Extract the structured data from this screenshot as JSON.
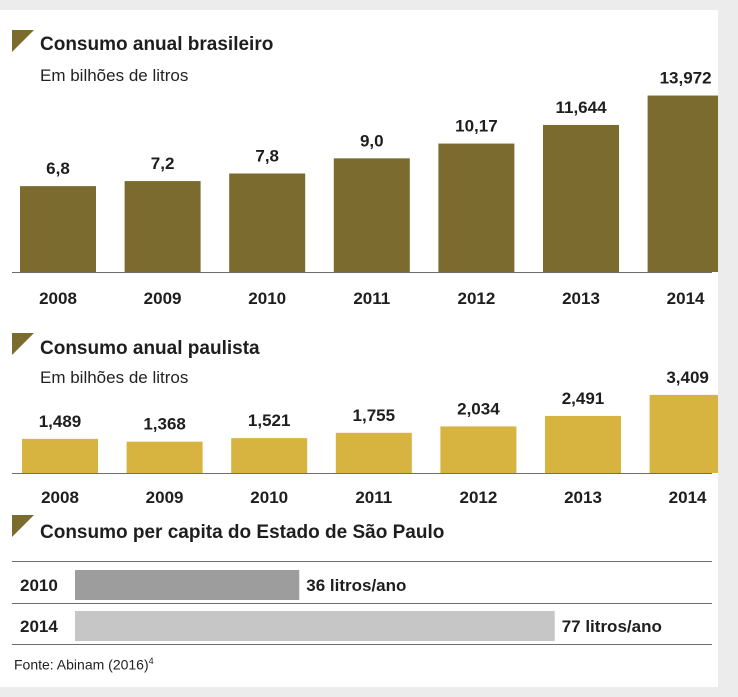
{
  "colors": {
    "chart1_bar": "#7b6b2f",
    "chart2_bar": "#d7b43f",
    "bar_2010": "#9d9d9d",
    "bar_2014": "#c6c6c6",
    "triangle": "#7b6b2f",
    "axis": "#6e6e6e"
  },
  "icons": {
    "section_marker": "triangle-corner-icon"
  },
  "source": {
    "text": "Fonte: Abinam (2016)",
    "note": "4"
  },
  "chart_data": [
    {
      "type": "bar",
      "title": "Consumo anual brasileiro",
      "subtitle": "Em bilhões de litros",
      "categories": [
        "2008",
        "2009",
        "2010",
        "2011",
        "2012",
        "2013",
        "2014"
      ],
      "values": [
        6.8,
        7.2,
        7.8,
        9.0,
        10.17,
        11.644,
        13.972
      ],
      "labels": [
        "6,8",
        "7,2",
        "7,8",
        "9,0",
        "10,17",
        "11,644",
        "13,972"
      ],
      "ylim": [
        0,
        14
      ],
      "grid": false
    },
    {
      "type": "bar",
      "title": "Consumo anual paulista",
      "subtitle": "Em bilhões de litros",
      "categories": [
        "2008",
        "2009",
        "2010",
        "2011",
        "2012",
        "2013",
        "2014"
      ],
      "values": [
        1.489,
        1.368,
        1.521,
        1.755,
        2.034,
        2.491,
        3.409
      ],
      "labels": [
        "1,489",
        "1,368",
        "1,521",
        "1,755",
        "2,034",
        "2,491",
        "3,409"
      ],
      "ylim": [
        0,
        3.5
      ],
      "grid": false
    },
    {
      "type": "bar",
      "orientation": "horizontal",
      "title": "Consumo per capita do Estado de São Paulo",
      "categories": [
        "2010",
        "2014"
      ],
      "values": [
        36,
        77
      ],
      "labels": [
        "36 litros/ano",
        "77 litros/ano"
      ],
      "grid": false
    }
  ]
}
